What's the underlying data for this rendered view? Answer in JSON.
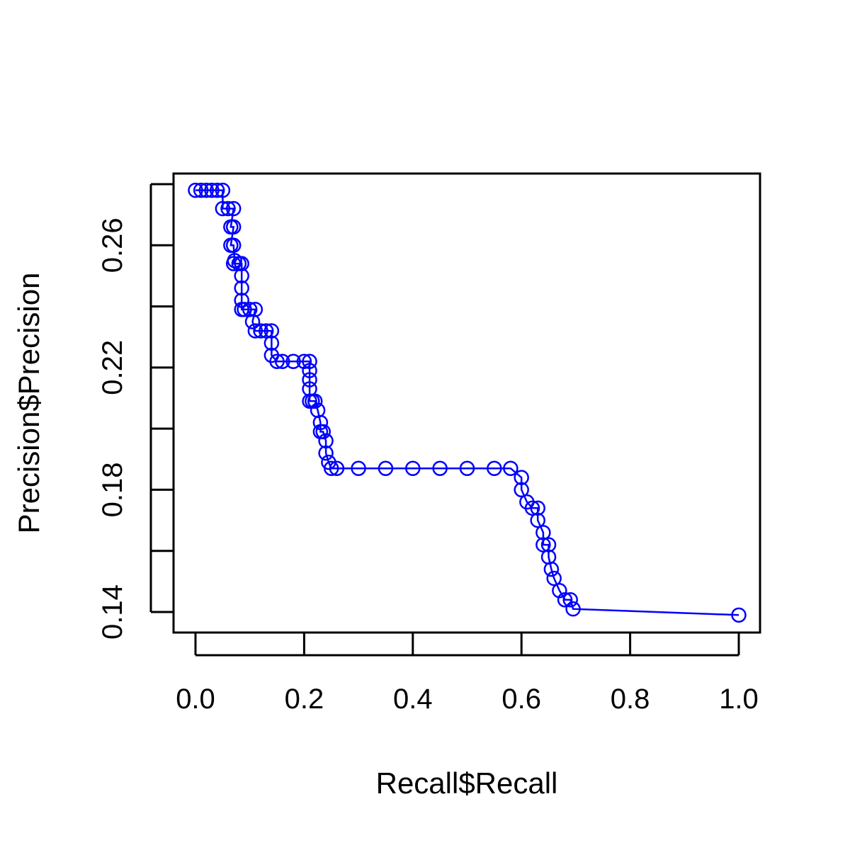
{
  "chart_data": {
    "type": "line",
    "title": "",
    "xlabel": "Recall$Recall",
    "ylabel": "Precision$Precision",
    "xlim": [
      0.0,
      1.0
    ],
    "ylim": [
      0.135,
      0.285
    ],
    "x_ticks": [
      0.0,
      0.2,
      0.4,
      0.6,
      0.8,
      1.0
    ],
    "x_tick_labels": [
      "0.0",
      "0.2",
      "0.4",
      "0.6",
      "0.8",
      "1.0"
    ],
    "y_ticks": [
      0.14,
      0.16,
      0.18,
      0.2,
      0.22,
      0.24,
      0.26,
      0.28
    ],
    "y_tick_labels": [
      "0.14",
      "",
      "0.18",
      "",
      "0.22",
      "",
      "0.26",
      ""
    ],
    "grid": false,
    "legend": "none",
    "marker": "open-circle",
    "line_and_points": true,
    "color": "#0000ff",
    "series": [
      {
        "x": [
          0.0,
          0.01,
          0.02,
          0.03,
          0.04,
          0.05,
          0.05,
          0.06,
          0.07,
          0.065,
          0.07,
          0.065,
          0.07,
          0.072,
          0.07,
          0.08,
          0.085,
          0.085,
          0.085,
          0.085,
          0.085,
          0.09,
          0.1,
          0.11,
          0.105,
          0.11,
          0.12,
          0.13,
          0.14,
          0.14,
          0.14,
          0.15,
          0.16,
          0.18,
          0.2,
          0.21,
          0.21,
          0.21,
          0.21,
          0.21,
          0.215,
          0.22,
          0.225,
          0.23,
          0.23,
          0.235,
          0.24,
          0.24,
          0.245,
          0.25,
          0.26,
          0.3,
          0.35,
          0.4,
          0.45,
          0.5,
          0.55,
          0.58,
          0.6,
          0.6,
          0.61,
          0.62,
          0.63,
          0.63,
          0.64,
          0.64,
          0.65,
          0.65,
          0.655,
          0.66,
          0.67,
          0.68,
          0.69,
          0.695,
          1.0
        ],
        "y": [
          0.278,
          0.278,
          0.278,
          0.278,
          0.278,
          0.278,
          0.272,
          0.272,
          0.272,
          0.266,
          0.266,
          0.26,
          0.26,
          0.255,
          0.254,
          0.254,
          0.254,
          0.25,
          0.246,
          0.242,
          0.239,
          0.239,
          0.239,
          0.239,
          0.235,
          0.232,
          0.232,
          0.232,
          0.232,
          0.228,
          0.224,
          0.222,
          0.222,
          0.222,
          0.222,
          0.222,
          0.219,
          0.216,
          0.213,
          0.209,
          0.209,
          0.209,
          0.206,
          0.202,
          0.199,
          0.199,
          0.196,
          0.192,
          0.189,
          0.187,
          0.187,
          0.187,
          0.187,
          0.187,
          0.187,
          0.187,
          0.187,
          0.187,
          0.184,
          0.18,
          0.176,
          0.174,
          0.174,
          0.17,
          0.166,
          0.162,
          0.162,
          0.158,
          0.154,
          0.151,
          0.147,
          0.144,
          0.144,
          0.141,
          0.139
        ]
      }
    ]
  }
}
